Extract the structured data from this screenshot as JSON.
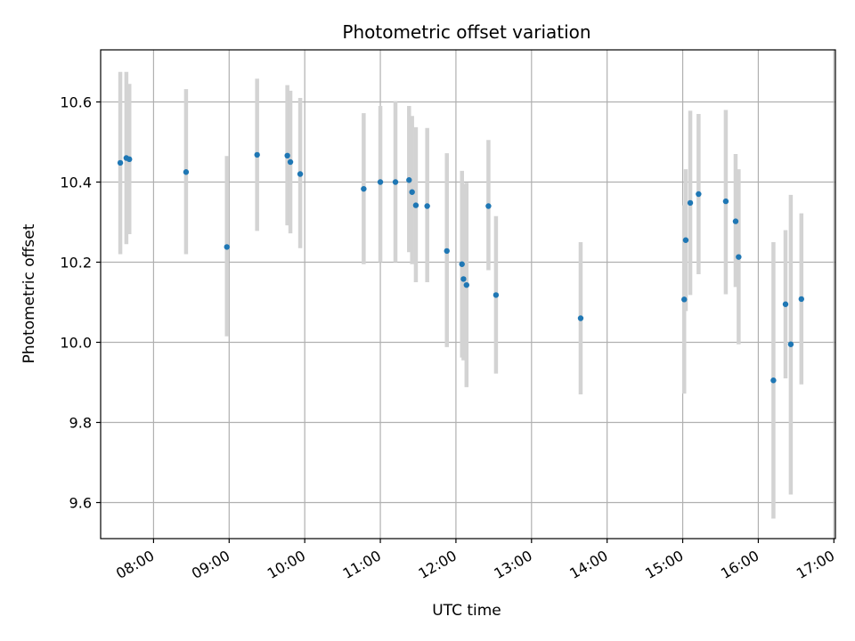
{
  "chart_data": {
    "type": "scatter",
    "title": "Photometric offset variation",
    "xlabel": "UTC time",
    "ylabel": "Photometric offset",
    "x_unit": "hours UTC",
    "xlim": [
      7.3,
      17.02
    ],
    "ylim": [
      9.51,
      10.73
    ],
    "grid": true,
    "x_ticks": [
      {
        "value": 8,
        "label": "08:00"
      },
      {
        "value": 9,
        "label": "09:00"
      },
      {
        "value": 10,
        "label": "10:00"
      },
      {
        "value": 11,
        "label": "11:00"
      },
      {
        "value": 12,
        "label": "12:00"
      },
      {
        "value": 13,
        "label": "13:00"
      },
      {
        "value": 14,
        "label": "14:00"
      },
      {
        "value": 15,
        "label": "15:00"
      },
      {
        "value": 16,
        "label": "16:00"
      },
      {
        "value": 17,
        "label": "17:00"
      }
    ],
    "y_ticks": [
      {
        "value": 9.6,
        "label": "9.6"
      },
      {
        "value": 9.8,
        "label": "9.8"
      },
      {
        "value": 10.0,
        "label": "10.0"
      },
      {
        "value": 10.2,
        "label": "10.2"
      },
      {
        "value": 10.4,
        "label": "10.4"
      },
      {
        "value": 10.6,
        "label": "10.6"
      }
    ],
    "colors": {
      "point": "#1f77b4",
      "error": "#d3d3d3",
      "grid": "#b0b0b0"
    },
    "points": [
      {
        "x": 7.56,
        "y": 10.448,
        "ylow": 10.22,
        "yhigh": 10.675
      },
      {
        "x": 7.64,
        "y": 10.46,
        "ylow": 10.245,
        "yhigh": 10.675
      },
      {
        "x": 7.68,
        "y": 10.457,
        "ylow": 10.27,
        "yhigh": 10.645
      },
      {
        "x": 8.43,
        "y": 10.425,
        "ylow": 10.22,
        "yhigh": 10.632
      },
      {
        "x": 8.97,
        "y": 10.238,
        "ylow": 10.015,
        "yhigh": 10.465
      },
      {
        "x": 9.37,
        "y": 10.468,
        "ylow": 10.278,
        "yhigh": 10.658
      },
      {
        "x": 9.77,
        "y": 10.466,
        "ylow": 10.292,
        "yhigh": 10.642
      },
      {
        "x": 9.81,
        "y": 10.45,
        "ylow": 10.272,
        "yhigh": 10.628
      },
      {
        "x": 9.94,
        "y": 10.42,
        "ylow": 10.235,
        "yhigh": 10.61
      },
      {
        "x": 10.78,
        "y": 10.383,
        "ylow": 10.195,
        "yhigh": 10.572
      },
      {
        "x": 11.0,
        "y": 10.4,
        "ylow": 10.2,
        "yhigh": 10.59
      },
      {
        "x": 11.2,
        "y": 10.4,
        "ylow": 10.2,
        "yhigh": 10.602
      },
      {
        "x": 11.38,
        "y": 10.405,
        "ylow": 10.225,
        "yhigh": 10.59
      },
      {
        "x": 11.42,
        "y": 10.375,
        "ylow": 10.195,
        "yhigh": 10.565
      },
      {
        "x": 11.47,
        "y": 10.342,
        "ylow": 10.15,
        "yhigh": 10.537
      },
      {
        "x": 11.62,
        "y": 10.34,
        "ylow": 10.15,
        "yhigh": 10.535
      },
      {
        "x": 11.88,
        "y": 10.228,
        "ylow": 9.988,
        "yhigh": 10.472
      },
      {
        "x": 12.08,
        "y": 10.195,
        "ylow": 9.962,
        "yhigh": 10.428
      },
      {
        "x": 12.1,
        "y": 10.158,
        "ylow": 9.955,
        "yhigh": 10.395
      },
      {
        "x": 12.14,
        "y": 10.143,
        "ylow": 9.888,
        "yhigh": 10.398
      },
      {
        "x": 12.43,
        "y": 10.34,
        "ylow": 10.18,
        "yhigh": 10.505
      },
      {
        "x": 12.53,
        "y": 10.118,
        "ylow": 9.922,
        "yhigh": 10.315
      },
      {
        "x": 13.65,
        "y": 10.06,
        "ylow": 9.87,
        "yhigh": 10.25
      },
      {
        "x": 15.02,
        "y": 10.107,
        "ylow": 9.872,
        "yhigh": 10.342
      },
      {
        "x": 15.04,
        "y": 10.255,
        "ylow": 10.078,
        "yhigh": 10.432
      },
      {
        "x": 15.1,
        "y": 10.348,
        "ylow": 10.118,
        "yhigh": 10.578
      },
      {
        "x": 15.21,
        "y": 10.37,
        "ylow": 10.17,
        "yhigh": 10.57
      },
      {
        "x": 15.57,
        "y": 10.352,
        "ylow": 10.12,
        "yhigh": 10.58
      },
      {
        "x": 15.7,
        "y": 10.302,
        "ylow": 10.138,
        "yhigh": 10.47
      },
      {
        "x": 15.74,
        "y": 10.213,
        "ylow": 9.995,
        "yhigh": 10.432
      },
      {
        "x": 16.2,
        "y": 9.905,
        "ylow": 9.56,
        "yhigh": 10.25
      },
      {
        "x": 16.36,
        "y": 10.095,
        "ylow": 9.91,
        "yhigh": 10.28
      },
      {
        "x": 16.43,
        "y": 9.995,
        "ylow": 9.62,
        "yhigh": 10.368
      },
      {
        "x": 16.57,
        "y": 10.108,
        "ylow": 9.895,
        "yhigh": 10.322
      }
    ]
  }
}
